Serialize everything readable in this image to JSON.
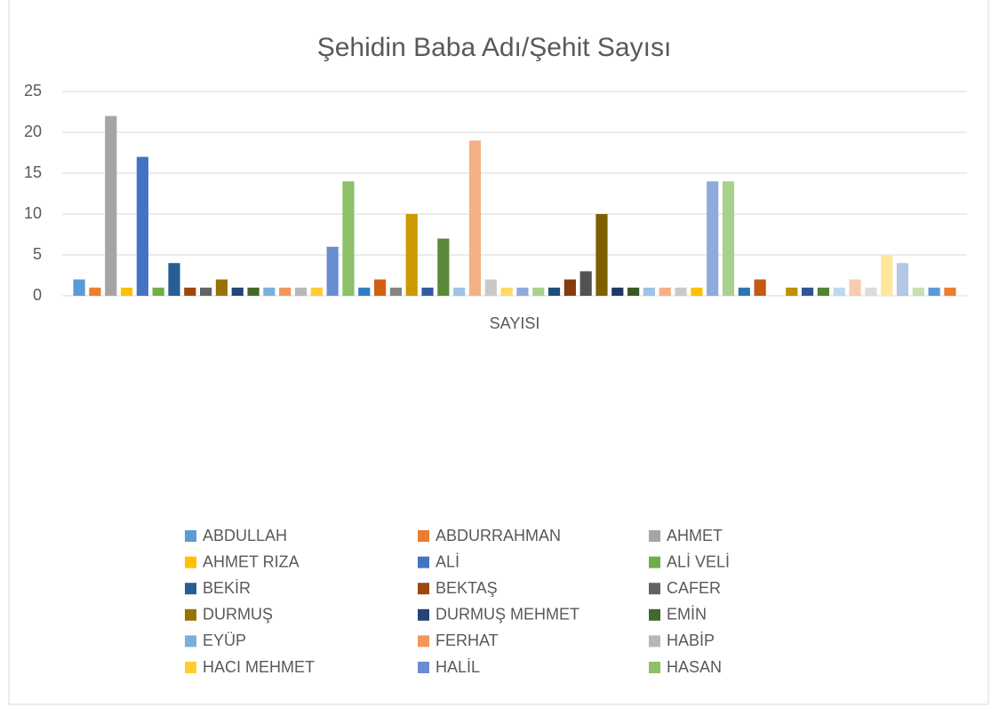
{
  "chart_data": {
    "type": "bar",
    "title": "Şehidin Baba Adı/Şehit Sayısı",
    "categories": [
      "SAYISI"
    ],
    "ylim": [
      0,
      25
    ],
    "yticks": [
      0,
      5,
      10,
      15,
      20,
      25
    ],
    "grid": true,
    "legend": "bottom",
    "series": [
      {
        "name": "ABDULLAH",
        "color": "#5b9bd5",
        "values": [
          2
        ]
      },
      {
        "name": "ABDURRAHMAN",
        "color": "#ed7d31",
        "values": [
          1
        ]
      },
      {
        "name": "AHMET",
        "color": "#a5a5a5",
        "values": [
          22
        ]
      },
      {
        "name": "AHMET RIZA",
        "color": "#ffc000",
        "values": [
          1
        ]
      },
      {
        "name": "ALİ",
        "color": "#4472c4",
        "values": [
          17
        ]
      },
      {
        "name": "ALİ VELİ",
        "color": "#70ad47",
        "values": [
          1
        ]
      },
      {
        "name": "BEKİR",
        "color": "#255e91",
        "values": [
          4
        ]
      },
      {
        "name": "BEKTAŞ",
        "color": "#9e480e",
        "values": [
          1
        ]
      },
      {
        "name": "CAFER",
        "color": "#636363",
        "values": [
          1
        ]
      },
      {
        "name": "DURMUŞ",
        "color": "#997300",
        "values": [
          2
        ]
      },
      {
        "name": "DURMUŞ MEHMET",
        "color": "#264478",
        "values": [
          1
        ]
      },
      {
        "name": "EMİN",
        "color": "#43682b",
        "values": [
          1
        ]
      },
      {
        "name": "EYÜP",
        "color": "#7cafdd",
        "values": [
          1
        ]
      },
      {
        "name": "FERHAT",
        "color": "#f1975a",
        "values": [
          1
        ]
      },
      {
        "name": "HABİP",
        "color": "#b7b7b7",
        "values": [
          1
        ]
      },
      {
        "name": "HACI MEHMET",
        "color": "#ffcd33",
        "values": [
          1
        ]
      },
      {
        "name": "HALİL",
        "color": "#698ed0",
        "values": [
          6
        ]
      },
      {
        "name": "HASAN",
        "color": "#8cc168",
        "values": [
          14
        ]
      },
      {
        "name": null,
        "color": "#327dc2",
        "values": [
          1
        ]
      },
      {
        "name": null,
        "color": "#d26012",
        "values": [
          2
        ]
      },
      {
        "name": null,
        "color": "#848484",
        "values": [
          1
        ]
      },
      {
        "name": null,
        "color": "#cc9a00",
        "values": [
          10
        ]
      },
      {
        "name": null,
        "color": "#335aa1",
        "values": [
          1
        ]
      },
      {
        "name": null,
        "color": "#5a8a39",
        "values": [
          7
        ]
      },
      {
        "name": null,
        "color": "#9dc3e6",
        "values": [
          1
        ]
      },
      {
        "name": null,
        "color": "#f4b183",
        "values": [
          19
        ]
      },
      {
        "name": null,
        "color": "#c9c9c9",
        "values": [
          2
        ]
      },
      {
        "name": null,
        "color": "#ffd966",
        "values": [
          1
        ]
      },
      {
        "name": null,
        "color": "#8faadc",
        "values": [
          1
        ]
      },
      {
        "name": null,
        "color": "#a9d18e",
        "values": [
          1
        ]
      },
      {
        "name": null,
        "color": "#1f4e79",
        "values": [
          1
        ]
      },
      {
        "name": null,
        "color": "#843c0c",
        "values": [
          2
        ]
      },
      {
        "name": null,
        "color": "#525252",
        "values": [
          3
        ]
      },
      {
        "name": null,
        "color": "#7f6000",
        "values": [
          10
        ]
      },
      {
        "name": null,
        "color": "#203864",
        "values": [
          1
        ]
      },
      {
        "name": null,
        "color": "#385723",
        "values": [
          1
        ]
      },
      {
        "name": null,
        "color": "#9dc3e6",
        "values": [
          1
        ]
      },
      {
        "name": null,
        "color": "#f4b183",
        "values": [
          1
        ]
      },
      {
        "name": null,
        "color": "#c9c9c9",
        "values": [
          1
        ]
      },
      {
        "name": null,
        "color": "#ffc000",
        "values": [
          1
        ]
      },
      {
        "name": null,
        "color": "#8faadc",
        "values": [
          14
        ]
      },
      {
        "name": null,
        "color": "#a9d18e",
        "values": [
          14
        ]
      },
      {
        "name": null,
        "color": "#2e75b6",
        "values": [
          1
        ]
      },
      {
        "name": null,
        "color": "#c55a11",
        "values": [
          2
        ]
      },
      {
        "name": null,
        "color": "#7f7f7f",
        "values": [
          0
        ]
      },
      {
        "name": null,
        "color": "#bf9000",
        "values": [
          1
        ]
      },
      {
        "name": null,
        "color": "#2f5597",
        "values": [
          1
        ]
      },
      {
        "name": null,
        "color": "#548235",
        "values": [
          1
        ]
      },
      {
        "name": null,
        "color": "#bdd7ee",
        "values": [
          1
        ]
      },
      {
        "name": null,
        "color": "#f8cbad",
        "values": [
          2
        ]
      },
      {
        "name": null,
        "color": "#dbdbdb",
        "values": [
          1
        ]
      },
      {
        "name": null,
        "color": "#ffe699",
        "values": [
          5
        ]
      },
      {
        "name": null,
        "color": "#b4c7e7",
        "values": [
          4
        ]
      },
      {
        "name": null,
        "color": "#c5e0b4",
        "values": [
          1
        ]
      },
      {
        "name": null,
        "color": "#5b9bd5",
        "values": [
          1
        ]
      },
      {
        "name": null,
        "color": "#ed7d31",
        "values": [
          1
        ]
      }
    ]
  }
}
